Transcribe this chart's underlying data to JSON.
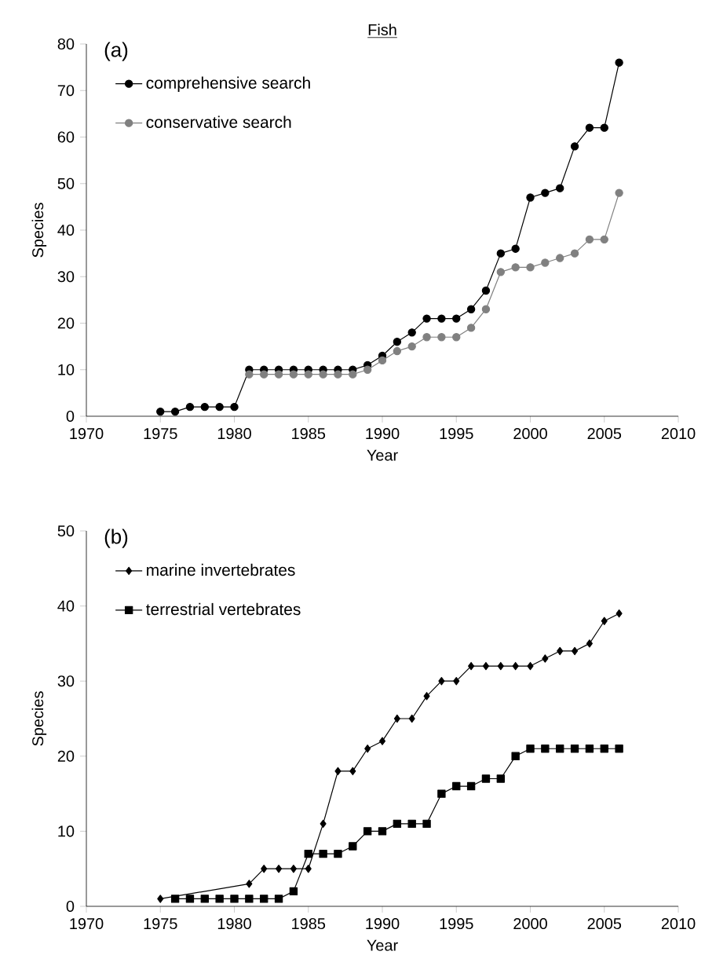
{
  "chart_data": [
    {
      "type": "line",
      "title": "Fish",
      "xlabel": "Year",
      "ylabel": "Species",
      "annotations": [
        "(a)"
      ],
      "legend": "top left",
      "xlim": [
        1970,
        2010
      ],
      "xticks": [
        1970,
        1975,
        1980,
        1985,
        1990,
        1995,
        2000,
        2005,
        2010
      ],
      "ylim": [
        0,
        80
      ],
      "yticks": [
        0,
        10,
        20,
        30,
        40,
        50,
        60,
        70,
        80
      ],
      "line_style": "solid",
      "series": [
        {
          "name": "comprehensive search",
          "color": "#000000",
          "marker": "circle",
          "x": [
            1975,
            1976,
            1977,
            1978,
            1979,
            1980,
            1981,
            1982,
            1983,
            1984,
            1985,
            1986,
            1987,
            1988,
            1989,
            1990,
            1991,
            1992,
            1993,
            1994,
            1995,
            1996,
            1997,
            1998,
            1999,
            2000,
            2001,
            2002,
            2003,
            2004,
            2005,
            2006
          ],
          "values": [
            1,
            1,
            2,
            2,
            2,
            2,
            10,
            10,
            10,
            10,
            10,
            10,
            10,
            10,
            11,
            13,
            16,
            18,
            21,
            21,
            21,
            23,
            27,
            35,
            36,
            47,
            48,
            49,
            58,
            62,
            62,
            76
          ]
        },
        {
          "name": "conservative search",
          "color": "#808080",
          "marker": "circle",
          "x": [
            1981,
            1982,
            1983,
            1984,
            1985,
            1986,
            1987,
            1988,
            1989,
            1990,
            1991,
            1992,
            1993,
            1994,
            1995,
            1996,
            1997,
            1998,
            1999,
            2000,
            2001,
            2002,
            2003,
            2004,
            2005,
            2006
          ],
          "values": [
            9,
            9,
            9,
            9,
            9,
            9,
            9,
            9,
            10,
            12,
            14,
            15,
            17,
            17,
            17,
            19,
            23,
            31,
            32,
            32,
            33,
            34,
            35,
            38,
            38,
            48
          ]
        }
      ]
    },
    {
      "type": "line",
      "xlabel": "Year",
      "ylabel": "Species",
      "annotations": [
        "(b)"
      ],
      "legend": "top left",
      "xlim": [
        1970,
        2010
      ],
      "xticks": [
        1970,
        1975,
        1980,
        1985,
        1990,
        1995,
        2000,
        2005,
        2010
      ],
      "ylim": [
        0,
        50
      ],
      "yticks": [
        0,
        10,
        20,
        30,
        40,
        50
      ],
      "line_style": "solid",
      "series": [
        {
          "name": "marine invertebrates",
          "color": "#000000",
          "marker": "diamond",
          "x": [
            1975,
            1976,
            1977,
            1978,
            1979,
            1980,
            1981,
            1982,
            1983,
            1984,
            1985,
            1986,
            1987,
            1988,
            1989,
            1990,
            1991,
            1992,
            1993,
            1994,
            1995,
            1996,
            1997,
            1998,
            1999,
            2000,
            2001,
            2002,
            2003,
            2004,
            2005,
            2006
          ],
          "values": [
            1,
            null,
            null,
            null,
            null,
            null,
            3,
            5,
            5,
            5,
            5,
            11,
            18,
            18,
            21,
            22,
            25,
            25,
            28,
            30,
            30,
            32,
            32,
            32,
            32,
            32,
            33,
            34,
            34,
            35,
            38,
            39
          ]
        },
        {
          "name": "terrestrial vertebrates",
          "color": "#000000",
          "marker": "square",
          "x": [
            1976,
            1977,
            1978,
            1979,
            1980,
            1981,
            1982,
            1983,
            1984,
            1985,
            1986,
            1987,
            1988,
            1989,
            1990,
            1991,
            1992,
            1993,
            1994,
            1995,
            1996,
            1997,
            1998,
            1999,
            2000,
            2001,
            2002,
            2003,
            2004,
            2005,
            2006
          ],
          "values": [
            1,
            1,
            1,
            1,
            1,
            1,
            1,
            1,
            2,
            7,
            7,
            7,
            8,
            10,
            10,
            11,
            11,
            11,
            15,
            16,
            16,
            17,
            17,
            20,
            21,
            21,
            21,
            21,
            21,
            21,
            21
          ]
        }
      ]
    }
  ]
}
